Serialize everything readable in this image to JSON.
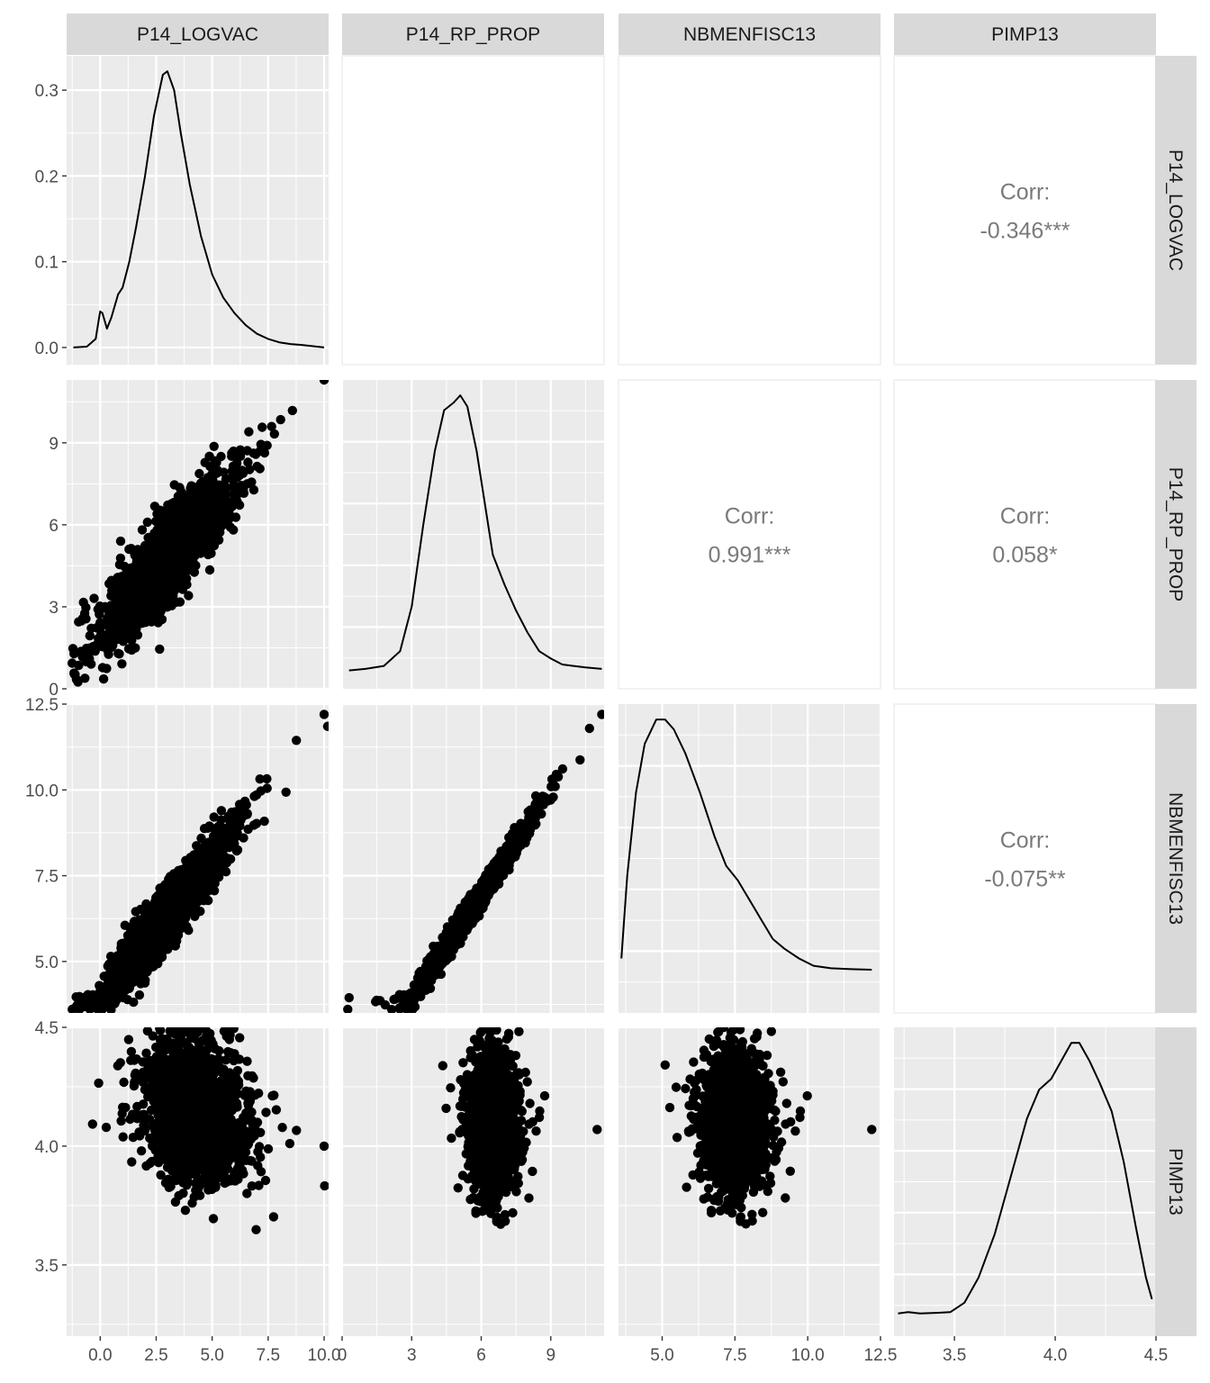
{
  "chart_data": {
    "type": "scatter",
    "title": "",
    "variables": [
      "P14_LOGVAC",
      "P14_RP_PROP",
      "NBMENFISC13",
      "PIMP13"
    ],
    "column_strips": [
      "P14_LOGVAC",
      "P14_RP_PROP",
      "NBMENFISC13",
      "PIMP13"
    ],
    "row_strips": [
      "P14_LOGVAC",
      "P14_RP_PROP",
      "NBMENFISC13",
      "PIMP13"
    ],
    "layout": "scatterplot matrix: lower = scatter, diagonal = density, upper = correlation",
    "correlation_label": "Corr:",
    "correlations": [
      {
        "row": "P14_LOGVAC",
        "col": "PIMP13",
        "value": "-0.346***"
      },
      {
        "row": "P14_RP_PROP",
        "col": "NBMENFISC13",
        "value": "0.991***"
      },
      {
        "row": "P14_RP_PROP",
        "col": "PIMP13",
        "value": "0.058*"
      },
      {
        "row": "NBMENFISC13",
        "col": "PIMP13",
        "value": "-0.075**"
      }
    ],
    "axes": {
      "P14_LOGVAC": {
        "range": [
          -1.5,
          10.2
        ],
        "ticks": [
          0,
          2.5,
          5,
          7.5,
          10
        ],
        "tick_labels": [
          "0.0",
          "2.5",
          "5.0",
          "7.5",
          "10.0"
        ]
      },
      "P14_RP_PROP": {
        "range": [
          0,
          11.3
        ],
        "ticks": [
          0,
          3,
          6,
          9
        ],
        "tick_labels": [
          "0",
          "3",
          "6",
          "9"
        ]
      },
      "NBMENFISC13": {
        "range": [
          3.5,
          12.5
        ],
        "ticks": [
          5,
          7.5,
          10,
          12.5
        ],
        "tick_labels": [
          "5.0",
          "7.5",
          "10.0",
          "12.5"
        ]
      },
      "PIMP13": {
        "range": [
          3.2,
          4.5
        ],
        "ticks": [
          3.5,
          4,
          4.5
        ],
        "tick_labels": [
          "3.5",
          "4.0",
          "4.5"
        ]
      }
    },
    "density_y_axis": {
      "variable": "P14_LOGVAC",
      "range": [
        -0.02,
        0.34
      ],
      "ticks": [
        0,
        0.1,
        0.2,
        0.3
      ],
      "tick_labels": [
        "0.0",
        "0.1",
        "0.2",
        "0.3"
      ]
    },
    "densities": {
      "P14_LOGVAC": [
        [
          -1.2,
          0.0
        ],
        [
          -0.6,
          0.001
        ],
        [
          -0.2,
          0.01
        ],
        [
          -0.05,
          0.035
        ],
        [
          0.0,
          0.042
        ],
        [
          0.1,
          0.04
        ],
        [
          0.3,
          0.022
        ],
        [
          0.5,
          0.035
        ],
        [
          0.8,
          0.062
        ],
        [
          1.0,
          0.07
        ],
        [
          1.3,
          0.1
        ],
        [
          1.6,
          0.14
        ],
        [
          2.0,
          0.2
        ],
        [
          2.4,
          0.27
        ],
        [
          2.8,
          0.318
        ],
        [
          3.0,
          0.322
        ],
        [
          3.3,
          0.3
        ],
        [
          3.6,
          0.25
        ],
        [
          4.0,
          0.19
        ],
        [
          4.5,
          0.13
        ],
        [
          5.0,
          0.085
        ],
        [
          5.5,
          0.058
        ],
        [
          6.0,
          0.04
        ],
        [
          6.5,
          0.026
        ],
        [
          7.0,
          0.016
        ],
        [
          7.5,
          0.01
        ],
        [
          8.0,
          0.006
        ],
        [
          8.5,
          0.004
        ],
        [
          9.0,
          0.003
        ],
        [
          10.0,
          0.0
        ]
      ],
      "P14_RP_PROP": [
        [
          0.3,
          0.004
        ],
        [
          1.0,
          0.006
        ],
        [
          1.8,
          0.01
        ],
        [
          2.5,
          0.03
        ],
        [
          3.0,
          0.09
        ],
        [
          3.5,
          0.2
        ],
        [
          4.0,
          0.3
        ],
        [
          4.4,
          0.355
        ],
        [
          4.8,
          0.365
        ],
        [
          5.1,
          0.375
        ],
        [
          5.4,
          0.36
        ],
        [
          5.8,
          0.3
        ],
        [
          6.2,
          0.22
        ],
        [
          6.5,
          0.16
        ],
        [
          7.0,
          0.12
        ],
        [
          7.5,
          0.085
        ],
        [
          8.0,
          0.055
        ],
        [
          8.5,
          0.03
        ],
        [
          9.0,
          0.02
        ],
        [
          9.5,
          0.012
        ],
        [
          10.5,
          0.008
        ],
        [
          11.2,
          0.006
        ]
      ],
      "NBMENFISC13": [
        [
          3.6,
          0.08
        ],
        [
          3.8,
          0.25
        ],
        [
          4.1,
          0.42
        ],
        [
          4.4,
          0.52
        ],
        [
          4.8,
          0.57
        ],
        [
          5.1,
          0.57
        ],
        [
          5.4,
          0.55
        ],
        [
          5.8,
          0.5
        ],
        [
          6.3,
          0.42
        ],
        [
          6.8,
          0.33
        ],
        [
          7.2,
          0.27
        ],
        [
          7.6,
          0.24
        ],
        [
          8.0,
          0.2
        ],
        [
          8.4,
          0.16
        ],
        [
          8.8,
          0.12
        ],
        [
          9.2,
          0.1
        ],
        [
          9.7,
          0.08
        ],
        [
          10.2,
          0.065
        ],
        [
          10.8,
          0.06
        ],
        [
          11.5,
          0.058
        ],
        [
          12.2,
          0.057
        ]
      ],
      "PIMP13": [
        [
          3.22,
          0.1
        ],
        [
          3.27,
          0.12
        ],
        [
          3.33,
          0.1
        ],
        [
          3.42,
          0.11
        ],
        [
          3.48,
          0.12
        ],
        [
          3.55,
          0.25
        ],
        [
          3.62,
          0.6
        ],
        [
          3.7,
          1.2
        ],
        [
          3.78,
          2.0
        ],
        [
          3.86,
          2.8
        ],
        [
          3.92,
          3.2
        ],
        [
          3.98,
          3.35
        ],
        [
          4.03,
          3.6
        ],
        [
          4.08,
          3.85
        ],
        [
          4.12,
          3.85
        ],
        [
          4.17,
          3.6
        ],
        [
          4.22,
          3.3
        ],
        [
          4.28,
          2.9
        ],
        [
          4.34,
          2.2
        ],
        [
          4.4,
          1.3
        ],
        [
          4.45,
          0.6
        ],
        [
          4.48,
          0.3
        ]
      ]
    },
    "scatter_groups": [
      {
        "x": "P14_LOGVAC",
        "y": "P14_RP_PROP",
        "trend": [
          [
            0.0,
            2.0
          ],
          [
            10.0,
            11.3
          ]
        ],
        "spread": 0.75,
        "x_spread": 1.25,
        "x_center": 3.0,
        "n": 2200
      },
      {
        "x": "P14_LOGVAC",
        "y": "NBMENFISC13",
        "trend": [
          [
            0.0,
            3.8
          ],
          [
            10.0,
            12.2
          ]
        ],
        "spread": 0.4,
        "x_spread": 1.25,
        "x_center": 3.0,
        "n": 2200
      },
      {
        "x": "P14_RP_PROP",
        "y": "NBMENFISC13",
        "trend": [
          [
            2.8,
            3.7
          ],
          [
            11.2,
            12.2
          ]
        ],
        "spread": 0.18,
        "x_spread": 1.1,
        "x_center": 5.6,
        "n": 1800
      },
      {
        "x": "P14_LOGVAC",
        "y": "PIMP13",
        "trend": [
          [
            1.5,
            4.2
          ],
          [
            10.0,
            4.0
          ]
        ],
        "spread": 0.14,
        "x_spread": 1.0,
        "x_center": 4.3,
        "n": 2000
      },
      {
        "x": "P14_RP_PROP",
        "y": "PIMP13",
        "trend": [
          [
            5.5,
            4.1
          ],
          [
            11.0,
            4.07
          ]
        ],
        "spread": 0.14,
        "x_spread": 0.45,
        "x_center": 6.5,
        "n": 2000
      },
      {
        "x": "NBMENFISC13",
        "y": "PIMP13",
        "trend": [
          [
            6.8,
            4.1
          ],
          [
            12.2,
            4.07
          ]
        ],
        "spread": 0.14,
        "x_spread": 0.5,
        "x_center": 7.5,
        "n": 2000
      }
    ],
    "grid": true,
    "legend": "none"
  }
}
